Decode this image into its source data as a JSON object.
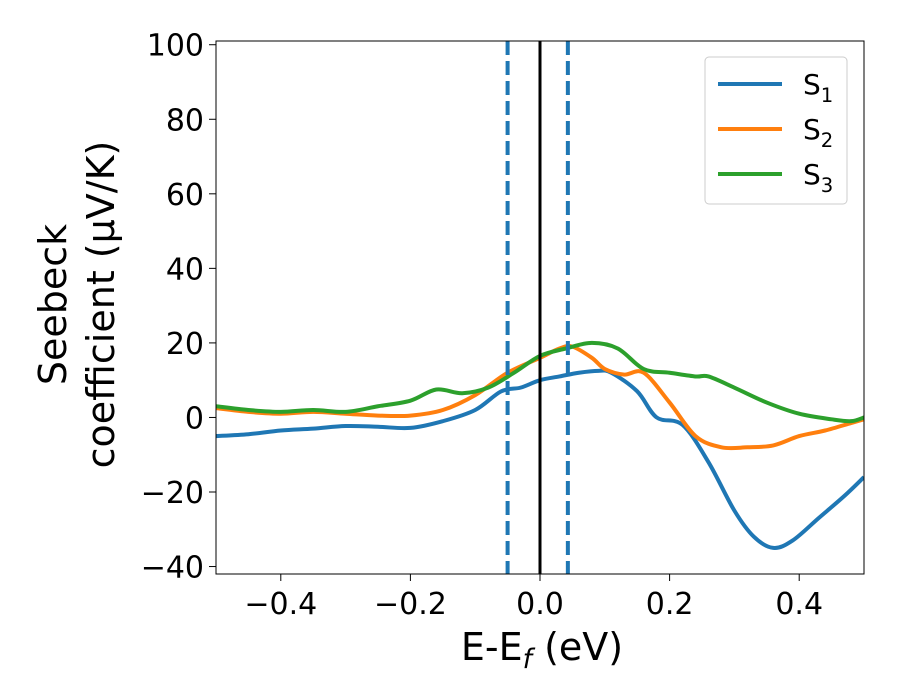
{
  "chart_data": {
    "type": "line",
    "xlabel": "E-E$_f$ (eV)",
    "ylabel_line1": "Seebeck",
    "ylabel_line2": "coefficient  (μV/K)",
    "xlim": [
      -0.5,
      0.5
    ],
    "ylim": [
      -42,
      101
    ],
    "xticks": [
      -0.4,
      -0.2,
      0.0,
      0.2,
      0.4
    ],
    "xtick_labels": [
      "−0.4",
      "−0.2",
      "0.0",
      "0.2",
      "0.4"
    ],
    "yticks": [
      -40,
      -20,
      0,
      20,
      40,
      60,
      80,
      100
    ],
    "ytick_labels": [
      "−40",
      "−20",
      "0",
      "20",
      "40",
      "60",
      "80",
      "100"
    ],
    "grid": false,
    "legend_position": "top-right",
    "vertical_lines": [
      {
        "x": -0.05,
        "style": "dashed",
        "color": "#1f77b4"
      },
      {
        "x": 0.0,
        "style": "solid",
        "color": "#000000"
      },
      {
        "x": 0.043,
        "style": "dashed",
        "color": "#1f77b4"
      }
    ],
    "series": [
      {
        "name": "S$_1$",
        "color": "#1f77b4",
        "points": [
          [
            -0.5,
            -5
          ],
          [
            -0.45,
            -4.5
          ],
          [
            -0.4,
            -3.5
          ],
          [
            -0.35,
            -3
          ],
          [
            -0.3,
            -2.3
          ],
          [
            -0.25,
            -2.5
          ],
          [
            -0.2,
            -2.8
          ],
          [
            -0.15,
            -1
          ],
          [
            -0.1,
            2
          ],
          [
            -0.06,
            7
          ],
          [
            -0.03,
            8
          ],
          [
            0.0,
            10
          ],
          [
            0.03,
            11
          ],
          [
            0.06,
            12
          ],
          [
            0.09,
            12.5
          ],
          [
            0.11,
            12
          ],
          [
            0.15,
            7
          ],
          [
            0.18,
            0
          ],
          [
            0.22,
            -2
          ],
          [
            0.26,
            -12
          ],
          [
            0.3,
            -25
          ],
          [
            0.33,
            -32
          ],
          [
            0.36,
            -35
          ],
          [
            0.39,
            -33
          ],
          [
            0.43,
            -27
          ],
          [
            0.47,
            -21
          ],
          [
            0.5,
            -16
          ]
        ]
      },
      {
        "name": "S$_2$",
        "color": "#ff7f0e",
        "points": [
          [
            -0.5,
            2.5
          ],
          [
            -0.45,
            1.5
          ],
          [
            -0.4,
            1
          ],
          [
            -0.35,
            1.5
          ],
          [
            -0.3,
            1
          ],
          [
            -0.25,
            0.5
          ],
          [
            -0.2,
            0.5
          ],
          [
            -0.15,
            2
          ],
          [
            -0.1,
            6
          ],
          [
            -0.05,
            12
          ],
          [
            0.0,
            16
          ],
          [
            0.03,
            18.5
          ],
          [
            0.05,
            19
          ],
          [
            0.08,
            16
          ],
          [
            0.1,
            13
          ],
          [
            0.13,
            11.5
          ],
          [
            0.16,
            12
          ],
          [
            0.2,
            4
          ],
          [
            0.24,
            -5
          ],
          [
            0.28,
            -8
          ],
          [
            0.32,
            -8
          ],
          [
            0.36,
            -7.5
          ],
          [
            0.4,
            -5
          ],
          [
            0.44,
            -3.5
          ],
          [
            0.48,
            -1.5
          ],
          [
            0.5,
            -0.5
          ]
        ]
      },
      {
        "name": "S$_3$",
        "color": "#2ca02c",
        "points": [
          [
            -0.5,
            3
          ],
          [
            -0.45,
            2
          ],
          [
            -0.4,
            1.5
          ],
          [
            -0.35,
            2
          ],
          [
            -0.3,
            1.5
          ],
          [
            -0.25,
            3
          ],
          [
            -0.2,
            4.5
          ],
          [
            -0.16,
            7.5
          ],
          [
            -0.12,
            6.5
          ],
          [
            -0.08,
            8
          ],
          [
            -0.04,
            12
          ],
          [
            0.0,
            16.5
          ],
          [
            0.04,
            18.5
          ],
          [
            0.08,
            20
          ],
          [
            0.12,
            18.5
          ],
          [
            0.16,
            13
          ],
          [
            0.2,
            12
          ],
          [
            0.24,
            11
          ],
          [
            0.26,
            11
          ],
          [
            0.3,
            8
          ],
          [
            0.35,
            4
          ],
          [
            0.4,
            1
          ],
          [
            0.45,
            -0.5
          ],
          [
            0.48,
            -1
          ],
          [
            0.5,
            0
          ]
        ]
      }
    ]
  }
}
